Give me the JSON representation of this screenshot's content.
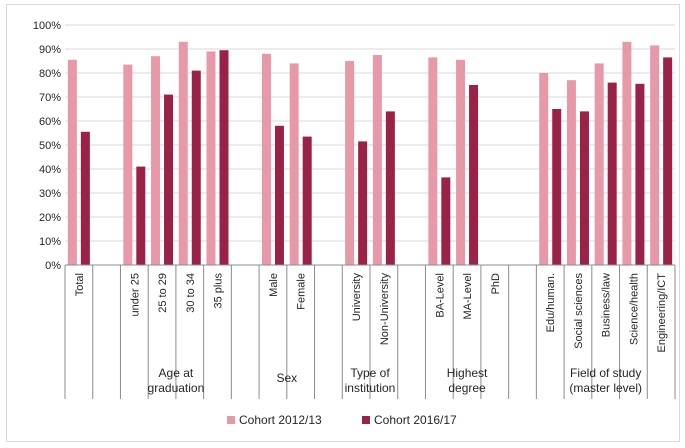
{
  "colors": {
    "cohort_2012": "#e899a8",
    "cohort_2016": "#9b2247",
    "grid": "#d9d9d9",
    "axis": "#8c8c8c"
  },
  "chart_data": {
    "type": "bar",
    "ylim": [
      0,
      100
    ],
    "y_ticks": [
      "0%",
      "10%",
      "20%",
      "30%",
      "40%",
      "50%",
      "60%",
      "70%",
      "80%",
      "90%",
      "100%"
    ],
    "grid": true,
    "legend_position": "bottom",
    "slots": [
      "Total",
      "",
      "under 25",
      "25 to 29",
      "30 to 34",
      "35 plus",
      "",
      "Male",
      "Female",
      "",
      "University",
      "Non-University",
      "",
      "BA-Level",
      "MA-Level",
      "PhD",
      "",
      "Edu/human.",
      "Social sciences",
      "Business/law",
      "Science/health",
      "Engineering/ICT"
    ],
    "groups": [
      {
        "label": "",
        "span": [
          0,
          0
        ]
      },
      {
        "label": "Age at graduation",
        "span": [
          2,
          5
        ]
      },
      {
        "label": "Sex",
        "span": [
          7,
          8
        ]
      },
      {
        "label": "Type of institution",
        "span": [
          10,
          11
        ]
      },
      {
        "label": "Highest degree",
        "span": [
          13,
          15
        ]
      },
      {
        "label": "Field of study (master level)",
        "span": [
          17,
          21
        ]
      }
    ],
    "series": [
      {
        "name": "Cohort 2012/13",
        "color": "#e899a8",
        "values": [
          85.5,
          null,
          83.5,
          87,
          93,
          89,
          null,
          88,
          84,
          null,
          85,
          87.5,
          null,
          86.5,
          85.5,
          null,
          null,
          80,
          77,
          84,
          93,
          91.5
        ]
      },
      {
        "name": "Cohort 2016/17",
        "color": "#9b2247",
        "values": [
          55.5,
          null,
          41,
          71,
          81,
          89.5,
          null,
          58,
          53.5,
          null,
          51.5,
          64,
          null,
          36.5,
          75,
          null,
          null,
          65,
          64,
          76,
          75.5,
          86.5
        ]
      }
    ]
  }
}
